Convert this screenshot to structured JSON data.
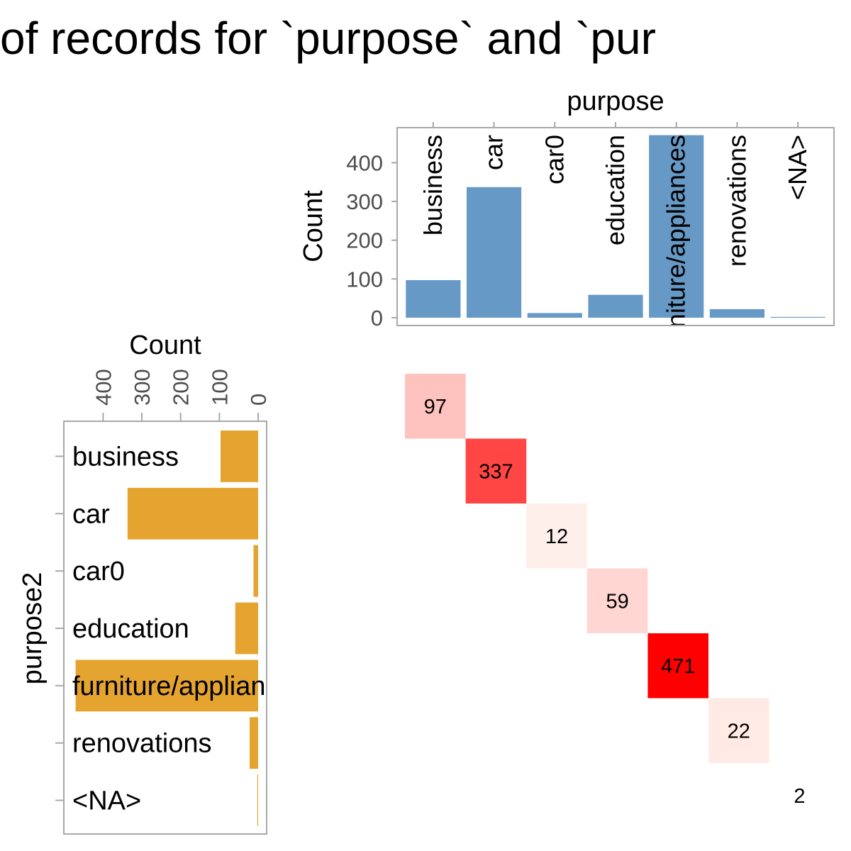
{
  "title": "of records for `purpose` and `pur",
  "colors": {
    "top_bar": "#6699C6",
    "left_bar": "#E5A430",
    "heat_low": "#FFF5F0",
    "heat_high": "#FF0000",
    "axis": "#A8A8A8",
    "tick_text": "#4D4D4D"
  },
  "chart_data": [
    {
      "type": "bar",
      "orientation": "vertical",
      "xlabel": "purpose",
      "ylabel": "Count",
      "ylim": [
        0,
        480
      ],
      "yticks": [
        0,
        100,
        200,
        300,
        400
      ],
      "categories": [
        "business",
        "car",
        "car0",
        "education",
        "furniture/appliances",
        "renovations",
        "<NA>"
      ],
      "values": [
        97,
        337,
        12,
        59,
        471,
        22,
        2
      ],
      "grid": false
    },
    {
      "type": "bar",
      "orientation": "horizontal",
      "xlabel": "Count",
      "ylabel": "purpose2",
      "xlim": [
        480,
        0
      ],
      "xticks": [
        400,
        300,
        200,
        100,
        0
      ],
      "categories": [
        "business",
        "car",
        "car0",
        "education",
        "furniture/appliances",
        "renovations",
        "<NA>"
      ],
      "values": [
        97,
        337,
        12,
        59,
        471,
        22,
        2
      ],
      "grid": false
    },
    {
      "type": "heatmap",
      "x_categories": [
        "business",
        "car",
        "car0",
        "education",
        "furniture/appliances",
        "renovations",
        "<NA>"
      ],
      "y_categories": [
        "business",
        "car",
        "car0",
        "education",
        "furniture/appliances",
        "renovations",
        "<NA>"
      ],
      "cells": [
        {
          "x": "business",
          "y": "business",
          "value": 97
        },
        {
          "x": "car",
          "y": "car",
          "value": 337
        },
        {
          "x": "car0",
          "y": "car0",
          "value": 12
        },
        {
          "x": "education",
          "y": "education",
          "value": 59
        },
        {
          "x": "furniture/appliances",
          "y": "furniture/appliances",
          "value": 471
        },
        {
          "x": "renovations",
          "y": "renovations",
          "value": 22
        },
        {
          "x": "<NA>",
          "y": "<NA>",
          "value": 2
        }
      ]
    }
  ]
}
